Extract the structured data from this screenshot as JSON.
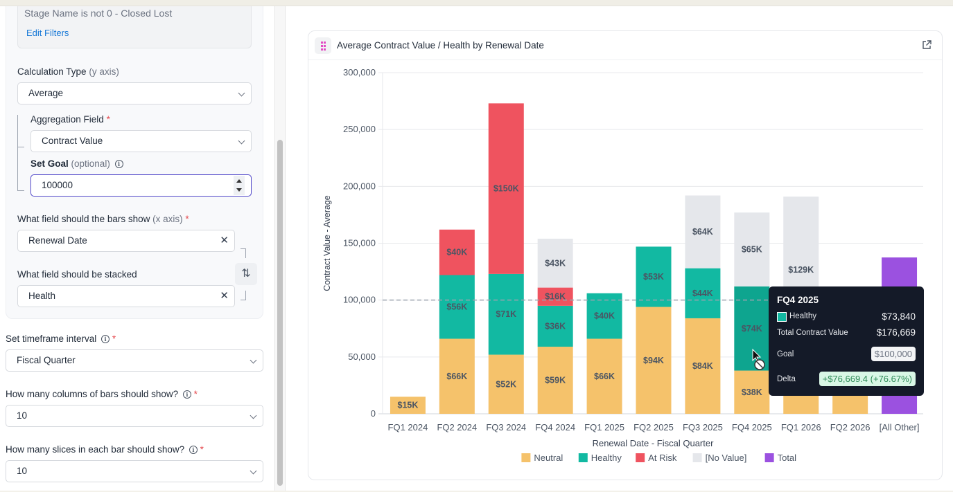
{
  "left_panel": {
    "filter_text": "Stage Name is not 0 - Closed Lost",
    "edit_filters": "Edit Filters",
    "calc_type": {
      "label": "Calculation Type",
      "hint": "(y axis)",
      "value": "Average"
    },
    "aggregation": {
      "label": "Aggregation Field",
      "required": "*",
      "value": "Contract Value"
    },
    "goal": {
      "label": "Set Goal",
      "hint": "(optional)",
      "value": "100000"
    },
    "x_field": {
      "label": "What field should the bars show",
      "hint": "(x axis)",
      "required": "*",
      "value": "Renewal Date"
    },
    "stack_field": {
      "label": "What field should be stacked",
      "value": "Health"
    },
    "timeframe": {
      "label": "Set timeframe interval",
      "required": "*",
      "value": "Fiscal Quarter"
    },
    "columns": {
      "label": "How many columns of bars should show?",
      "required": "*",
      "value": "10"
    },
    "slices": {
      "label": "How many slices in each bar should show?",
      "required": "*",
      "value": "10"
    },
    "clear_glyph": "✕",
    "swap_glyph": "⇅",
    "info_glyph": "i"
  },
  "card": {
    "title": "Average Contract Value / Health by Renewal Date"
  },
  "tooltip": {
    "title": "FQ4 2025",
    "series_label": "Healthy",
    "series_value": "$73,840",
    "total_label": "Total Contract Value",
    "total_value": "$176,669",
    "goal_label": "Goal",
    "goal_value": "$100,000",
    "delta_label": "Delta",
    "delta_value": "+$76,669.4 (+76.67%)"
  },
  "chart_data": {
    "type": "bar",
    "stacked": true,
    "title": "Average Contract Value / Health by Renewal Date",
    "xlabel": "Renewal Date - Fiscal Quarter",
    "ylabel": "Contract Value - Average",
    "ylim": [
      0,
      300000
    ],
    "yticks": [
      0,
      50000,
      100000,
      150000,
      200000,
      250000,
      300000
    ],
    "ytick_labels": [
      "0",
      "50,000",
      "100,000",
      "150,000",
      "200,000",
      "250,000",
      "300,000"
    ],
    "grid": true,
    "goal_line": 100000,
    "legend_position": "bottom",
    "categories": [
      "FQ1 2024",
      "FQ2 2024",
      "FQ3 2024",
      "FQ4 2024",
      "FQ1 2025",
      "FQ2 2025",
      "FQ3 2025",
      "FQ4 2025",
      "FQ1 2026",
      "FQ2 2026",
      "[All Other]"
    ],
    "series": [
      {
        "name": "Neutral",
        "color": "#f5c26b",
        "values": [
          15000,
          66000,
          52000,
          59000,
          66000,
          94000,
          84000,
          38000,
          62000,
          20000,
          0
        ],
        "labels": [
          "$15K",
          "$66K",
          "$52K",
          "$59K",
          "$66K",
          "$94K",
          "$84K",
          "$38K",
          "",
          "",
          ""
        ]
      },
      {
        "name": "Healthy",
        "color": "#12b9a2",
        "values": [
          0,
          56000,
          71000,
          36000,
          40000,
          53000,
          44000,
          74000,
          0,
          0,
          0
        ],
        "labels": [
          "",
          "$56K",
          "$71K",
          "$36K",
          "$40K",
          "$53K",
          "$44K",
          "$74K",
          "",
          "",
          ""
        ]
      },
      {
        "name": "At Risk",
        "color": "#ef535f",
        "values": [
          0,
          40000,
          150000,
          16000,
          0,
          0,
          0,
          0,
          0,
          0,
          0
        ],
        "labels": [
          "",
          "$40K",
          "$150K",
          "$16K",
          "",
          "",
          "",
          "",
          "",
          "",
          ""
        ]
      },
      {
        "name": "[No Value]",
        "color": "#e5e7eb",
        "values": [
          0,
          0,
          0,
          43000,
          0,
          0,
          64000,
          65000,
          129000,
          0,
          0
        ],
        "labels": [
          "",
          "",
          "",
          "$43K",
          "",
          "",
          "$64K",
          "$65K",
          "$129K",
          "",
          ""
        ]
      },
      {
        "name": "Total",
        "color": "#9b51e0",
        "values": [
          0,
          0,
          0,
          0,
          0,
          0,
          0,
          0,
          0,
          0,
          137500
        ],
        "labels": [
          "",
          "",
          "",
          "",
          "",
          "",
          "",
          "",
          "",
          "",
          ""
        ]
      }
    ],
    "highlighted": {
      "category": "FQ4 2025",
      "series": "Healthy",
      "color": "#0ea58f"
    }
  }
}
